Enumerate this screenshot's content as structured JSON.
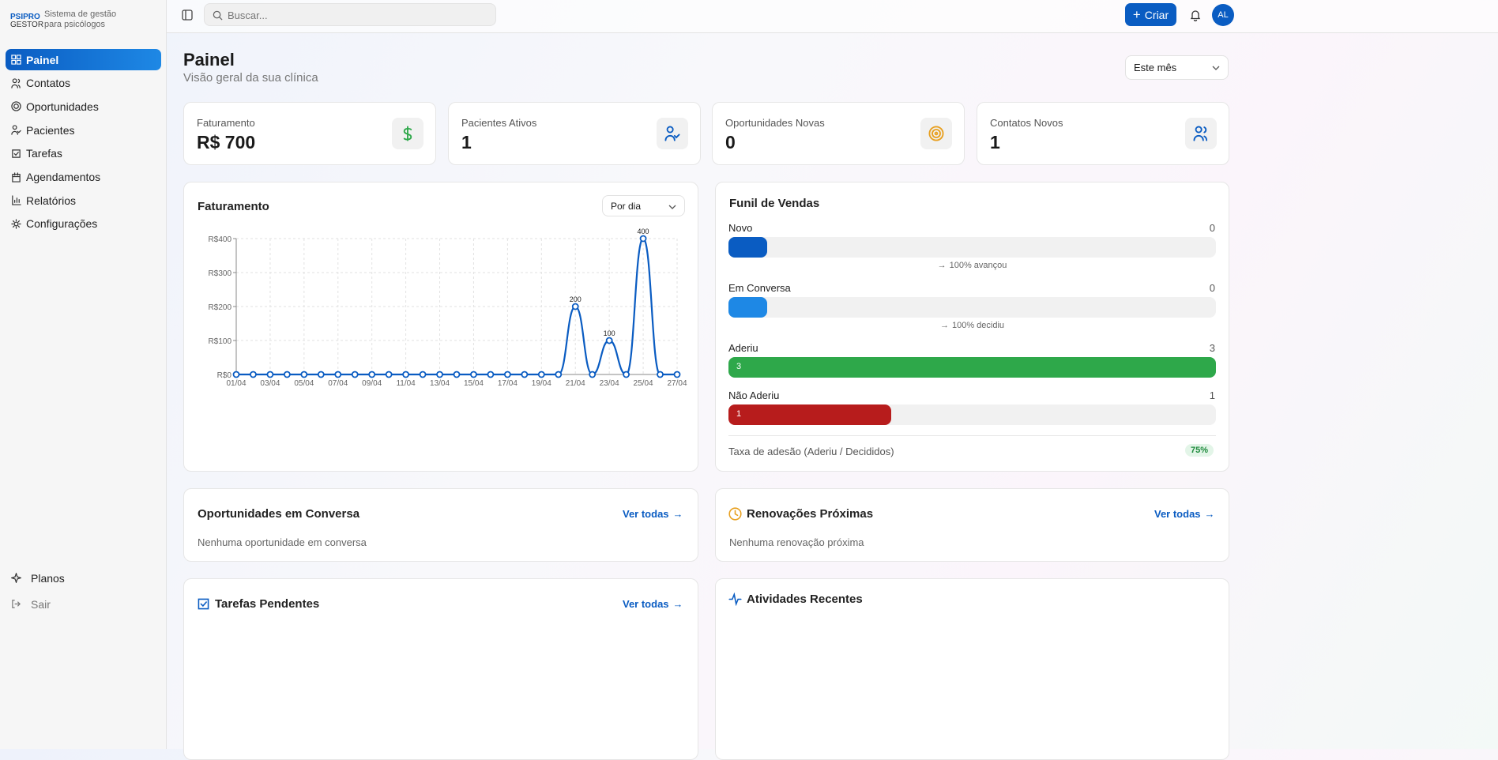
{
  "sidebar": {
    "brand": [
      "PSIPRO",
      "GESTOR"
    ],
    "tagline": [
      "Sistema de gestão",
      "para psicólogos"
    ],
    "nav": [
      "Painel",
      "Contatos",
      "Oportunidades",
      "Pacientes",
      "Tarefas",
      "Agendamentos",
      "Relatórios",
      "Configurações"
    ],
    "footer": [
      "Planos",
      "Sair"
    ]
  },
  "header": {
    "search_placeholder": "Buscar...",
    "create": "Criar",
    "avatar": "AL"
  },
  "page": {
    "title": "Painel",
    "subtitle": "Visão geral da sua clínica",
    "period": "Este mês"
  },
  "kpis": [
    {
      "label": "Faturamento",
      "value": "R$ 700"
    },
    {
      "label": "Pacientes Ativos",
      "value": "1"
    },
    {
      "label": "Oportunidades Novas",
      "value": "0"
    },
    {
      "label": "Contatos Novos",
      "value": "1"
    }
  ],
  "revenue": {
    "title": "Faturamento",
    "filter": "Por dia"
  },
  "chart_data": {
    "type": "line",
    "categories": [
      "01/04",
      null,
      "03/04",
      null,
      "05/04",
      null,
      "07/04",
      null,
      "09/04",
      null,
      "11/04",
      null,
      "13/04",
      null,
      "15/04",
      null,
      "17/04",
      null,
      "19/04",
      null,
      "21/04",
      null,
      "23/04",
      null,
      "25/04",
      null,
      "27/04"
    ],
    "series": [
      {
        "name": "Faturamento",
        "color": "#0a5cc2",
        "values": [
          0,
          0,
          0,
          0,
          0,
          0,
          0,
          0,
          0,
          0,
          0,
          0,
          0,
          0,
          0,
          0,
          0,
          0,
          0,
          0,
          200,
          0,
          100,
          0,
          400,
          0,
          0
        ]
      }
    ],
    "ylim": [
      0,
      400
    ],
    "yticks": [
      {
        "value": 0,
        "label": "R$0"
      },
      {
        "value": 100,
        "label": "R$100"
      },
      {
        "value": 200,
        "label": "R$200"
      },
      {
        "value": 300,
        "label": "R$300"
      },
      {
        "value": 400,
        "label": "R$400"
      }
    ],
    "grid": true
  },
  "funnel": {
    "title": "Funil de Vendas",
    "stages": [
      {
        "name": "Novo",
        "count": 0,
        "color": "#0a5cc2",
        "note": "100% avançou"
      },
      {
        "name": "Em Conversa",
        "count": 0,
        "color": "#1e88e5",
        "note": "100% decidiu"
      },
      {
        "name": "Aderiu",
        "count": 3,
        "color": "#2ea84a"
      },
      {
        "name": "Não Aderiu",
        "count": 1,
        "color": "#b71c1c"
      }
    ],
    "rate_label": "Taxa de adesão (Aderiu / Decididos)",
    "rate": "75%"
  },
  "panels": [
    {
      "title": "Oportunidades em Conversa",
      "link": "Ver todas",
      "empty": "Nenhuma oportunidade em conversa"
    },
    {
      "title": "Renovações Próximas",
      "link": "Ver todas",
      "empty": "Nenhuma renovação próxima"
    },
    {
      "title": "Tarefas Pendentes",
      "link": "Ver todas"
    },
    {
      "title": "Atividades Recentes"
    }
  ]
}
